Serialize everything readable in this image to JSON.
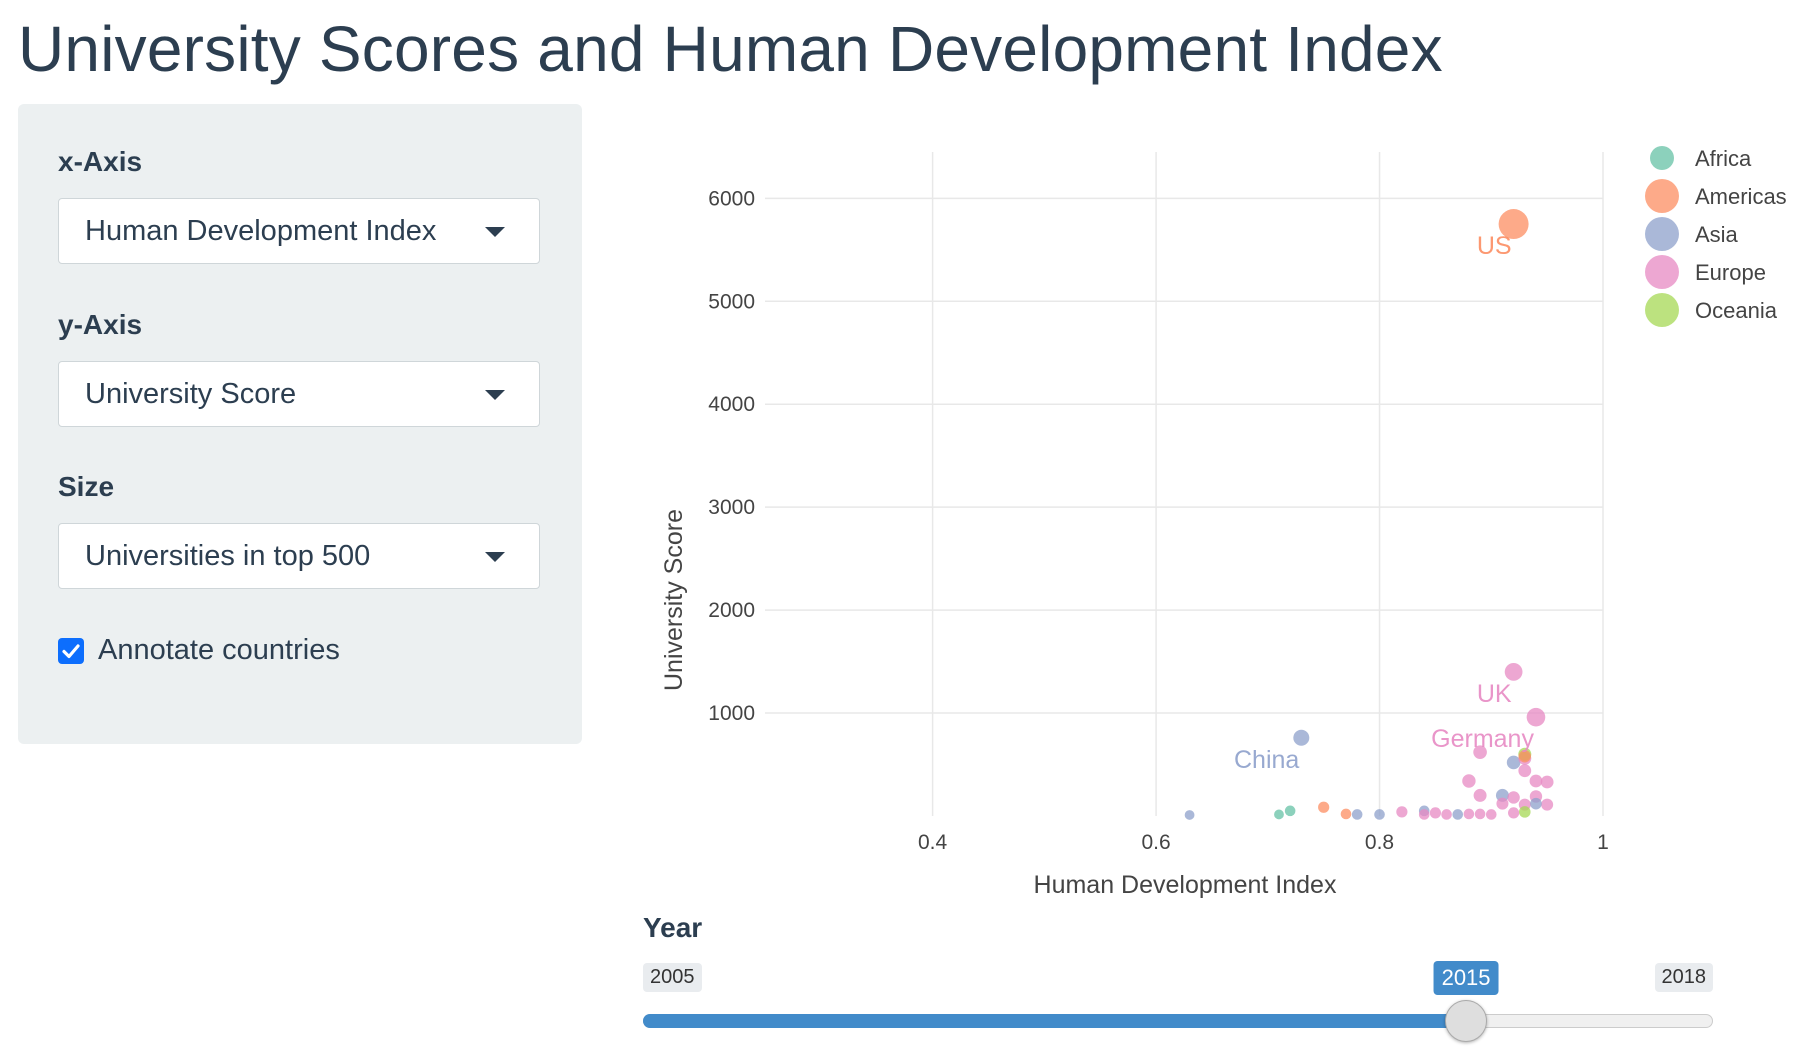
{
  "page": {
    "title": "University Scores and Human Development Index"
  },
  "controls": {
    "x_axis": {
      "label": "x-Axis",
      "selected": "Human Development Index"
    },
    "y_axis": {
      "label": "y-Axis",
      "selected": "University Score"
    },
    "size": {
      "label": "Size",
      "selected": "Universities in top 500"
    },
    "annotate": {
      "label": "Annotate countries",
      "checked": true
    }
  },
  "icons": {
    "dropdown": "chevron-down-icon",
    "checkbox": "check-icon"
  },
  "colors": {
    "accent": "#428bca",
    "checkbox": "#0d6efd",
    "Africa": "#66c2a5",
    "Americas": "#fc8d62",
    "Asia": "#8da0cb",
    "Europe": "#e78ac3",
    "Oceania": "#a6d854"
  },
  "year_slider": {
    "label": "Year",
    "min": 2005,
    "max": 2018,
    "value": 2015,
    "min_label": "2005",
    "max_label": "2018",
    "value_label": "2015"
  },
  "chart_data": {
    "type": "scatter",
    "xlabel": "Human Development Index",
    "ylabel": "University Score",
    "xlim": [
      0.25,
      1.0
    ],
    "ylim": [
      0,
      6450
    ],
    "xticks": [
      0.4,
      0.6,
      0.8,
      1.0
    ],
    "xtick_labels": [
      "0.4",
      "0.6",
      "0.8",
      "1"
    ],
    "yticks": [
      1000,
      2000,
      3000,
      4000,
      5000,
      6000
    ],
    "ytick_labels": [
      "1000",
      "2000",
      "3000",
      "4000",
      "5000",
      "6000"
    ],
    "grid": true,
    "legend_position": "top-right",
    "legend": [
      "Africa",
      "Americas",
      "Asia",
      "Europe",
      "Oceania"
    ],
    "annotations": [
      {
        "text": "US",
        "x": 0.92,
        "y": 5750,
        "region": "Americas"
      },
      {
        "text": "UK",
        "x": 0.92,
        "y": 1400,
        "region": "Europe"
      },
      {
        "text": "Germany",
        "x": 0.94,
        "y": 960,
        "region": "Europe"
      },
      {
        "text": "China",
        "x": 0.73,
        "y": 760,
        "region": "Asia"
      }
    ],
    "series": [
      {
        "name": "Africa",
        "points": [
          {
            "x": 0.72,
            "y": 50,
            "size": 2
          },
          {
            "x": 0.71,
            "y": 15,
            "size": 1
          }
        ]
      },
      {
        "name": "Americas",
        "points": [
          {
            "x": 0.92,
            "y": 5750,
            "size": 150
          },
          {
            "x": 0.75,
            "y": 85,
            "size": 3
          },
          {
            "x": 0.77,
            "y": 20,
            "size": 2
          },
          {
            "x": 0.93,
            "y": 580,
            "size": 6
          }
        ]
      },
      {
        "name": "Asia",
        "points": [
          {
            "x": 0.73,
            "y": 760,
            "size": 20
          },
          {
            "x": 0.92,
            "y": 520,
            "size": 10
          },
          {
            "x": 0.91,
            "y": 200,
            "size": 8
          },
          {
            "x": 0.78,
            "y": 15,
            "size": 2
          },
          {
            "x": 0.8,
            "y": 15,
            "size": 2
          },
          {
            "x": 0.63,
            "y": 10,
            "size": 1
          },
          {
            "x": 0.84,
            "y": 50,
            "size": 2
          },
          {
            "x": 0.87,
            "y": 15,
            "size": 2
          },
          {
            "x": 0.94,
            "y": 120,
            "size": 4
          }
        ]
      },
      {
        "name": "Europe",
        "points": [
          {
            "x": 0.92,
            "y": 1400,
            "size": 30
          },
          {
            "x": 0.94,
            "y": 960,
            "size": 35
          },
          {
            "x": 0.89,
            "y": 620,
            "size": 10
          },
          {
            "x": 0.93,
            "y": 560,
            "size": 8
          },
          {
            "x": 0.93,
            "y": 440,
            "size": 7
          },
          {
            "x": 0.88,
            "y": 340,
            "size": 9
          },
          {
            "x": 0.94,
            "y": 340,
            "size": 7
          },
          {
            "x": 0.95,
            "y": 330,
            "size": 7
          },
          {
            "x": 0.89,
            "y": 200,
            "size": 8
          },
          {
            "x": 0.92,
            "y": 180,
            "size": 6
          },
          {
            "x": 0.94,
            "y": 190,
            "size": 6
          },
          {
            "x": 0.91,
            "y": 120,
            "size": 5
          },
          {
            "x": 0.93,
            "y": 110,
            "size": 5
          },
          {
            "x": 0.95,
            "y": 110,
            "size": 5
          },
          {
            "x": 0.82,
            "y": 40,
            "size": 3
          },
          {
            "x": 0.85,
            "y": 30,
            "size": 3
          },
          {
            "x": 0.88,
            "y": 20,
            "size": 2
          },
          {
            "x": 0.89,
            "y": 20,
            "size": 2
          },
          {
            "x": 0.9,
            "y": 15,
            "size": 2
          },
          {
            "x": 0.92,
            "y": 30,
            "size": 3
          },
          {
            "x": 0.84,
            "y": 15,
            "size": 2
          },
          {
            "x": 0.86,
            "y": 15,
            "size": 2
          }
        ]
      },
      {
        "name": "Oceania",
        "points": [
          {
            "x": 0.93,
            "y": 600,
            "size": 8
          },
          {
            "x": 0.93,
            "y": 40,
            "size": 4
          }
        ]
      }
    ]
  }
}
